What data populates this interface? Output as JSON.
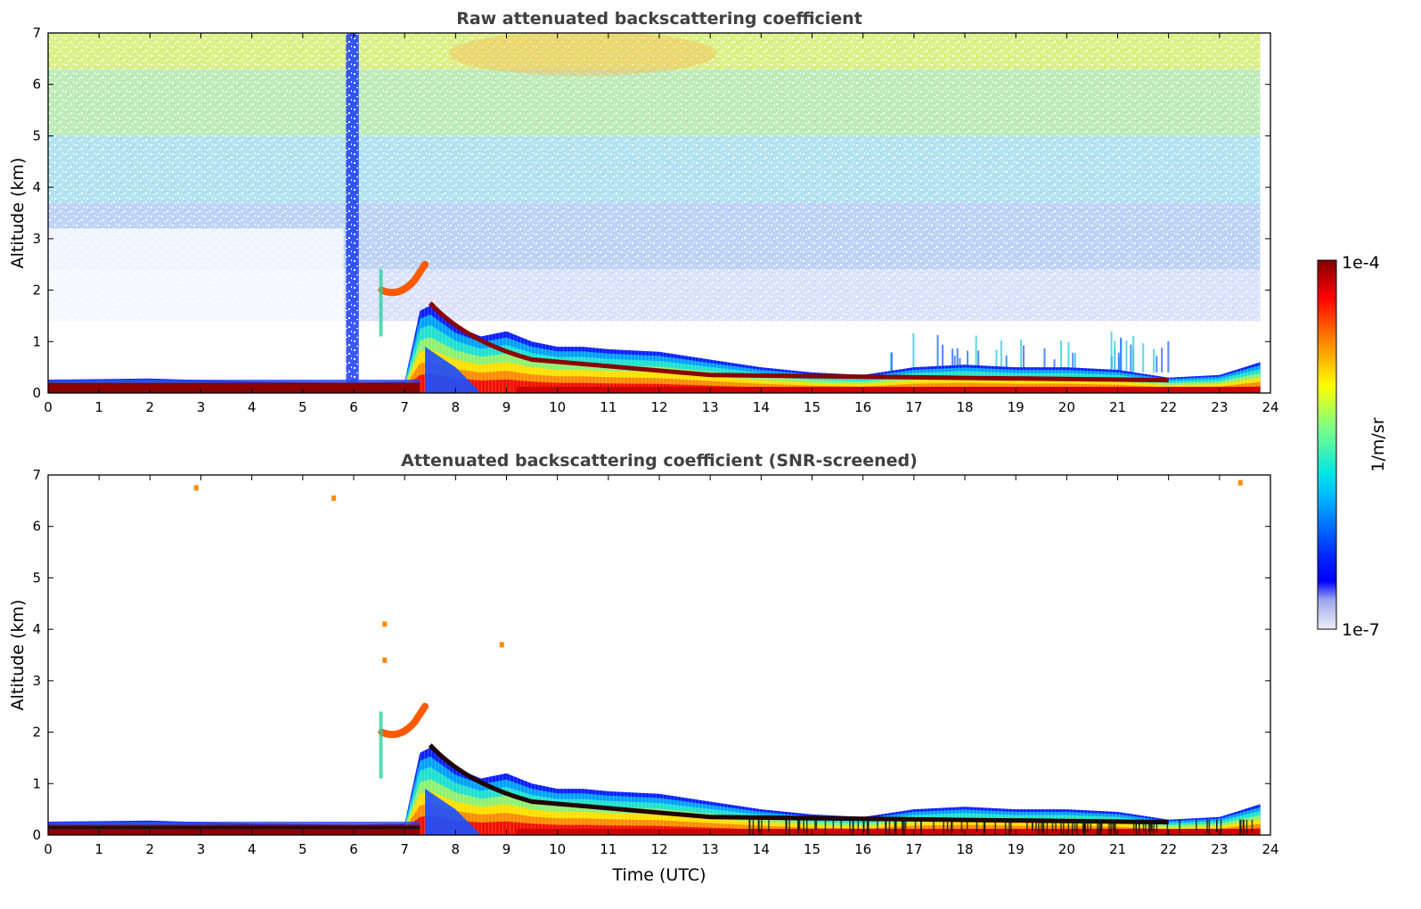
{
  "chart_data": [
    {
      "type": "heatmap",
      "title": "Raw attenuated backscattering coefficient",
      "xlabel": "",
      "ylabel": "Altitude (km)",
      "xlim": [
        0,
        24
      ],
      "ylim": [
        0,
        7
      ],
      "x_ticks": [
        "0",
        "1",
        "2",
        "3",
        "4",
        "5",
        "6",
        "7",
        "8",
        "9",
        "10",
        "11",
        "12",
        "13",
        "14",
        "15",
        "16",
        "17",
        "18",
        "19",
        "20",
        "21",
        "22",
        "23",
        "24"
      ],
      "y_ticks": [
        "0",
        "1",
        "2",
        "3",
        "4",
        "5",
        "6",
        "7"
      ],
      "data_extent_hours": [
        0,
        23.8
      ],
      "features": {
        "surface_layer_top_km": [
          [
            0,
            0.26
          ],
          [
            2,
            0.28
          ],
          [
            4,
            0.22
          ],
          [
            6,
            0.2
          ],
          [
            7,
            0.22
          ],
          [
            7.3,
            1.6
          ],
          [
            7.5,
            1.7
          ],
          [
            8,
            1.3
          ],
          [
            8.5,
            1.1
          ],
          [
            9,
            1.2
          ],
          [
            9.5,
            1.0
          ],
          [
            10,
            0.9
          ],
          [
            10.5,
            0.9
          ],
          [
            11,
            0.85
          ],
          [
            12,
            0.8
          ],
          [
            13,
            0.65
          ],
          [
            14,
            0.5
          ],
          [
            15,
            0.4
          ],
          [
            16,
            0.35
          ],
          [
            17,
            0.5
          ],
          [
            18,
            0.55
          ],
          [
            19,
            0.5
          ],
          [
            20,
            0.5
          ],
          [
            21,
            0.45
          ],
          [
            22,
            0.3
          ],
          [
            23,
            0.35
          ],
          [
            23.8,
            0.6
          ]
        ],
        "precipitation_column_hours": [
          5.85,
          6.1
        ],
        "elevated_layer": {
          "x": [
            6.5,
            7.4
          ],
          "y_km": [
            1.9,
            2.5
          ]
        }
      },
      "colorbar": {
        "label": "1/m/sr",
        "min_label": "1e-7",
        "max_label": "1e-4",
        "scale": "log"
      }
    },
    {
      "type": "heatmap",
      "title": "Attenuated backscattering coefficient (SNR-screened)",
      "xlabel": "Time (UTC)",
      "ylabel": "Altitude (km)",
      "xlim": [
        0,
        24
      ],
      "ylim": [
        0,
        7
      ],
      "x_ticks": [
        "0",
        "1",
        "2",
        "3",
        "4",
        "5",
        "6",
        "7",
        "8",
        "9",
        "10",
        "11",
        "12",
        "13",
        "14",
        "15",
        "16",
        "17",
        "18",
        "19",
        "20",
        "21",
        "22",
        "23",
        "24"
      ],
      "y_ticks": [
        "0",
        "1",
        "2",
        "3",
        "4",
        "5",
        "6",
        "7"
      ],
      "data_extent_hours": [
        0,
        23.8
      ],
      "features": {
        "surface_layer_top_km": [
          [
            0,
            0.26
          ],
          [
            2,
            0.28
          ],
          [
            4,
            0.22
          ],
          [
            6,
            0.2
          ],
          [
            7,
            0.22
          ],
          [
            7.3,
            1.6
          ],
          [
            7.5,
            1.7
          ],
          [
            8,
            1.3
          ],
          [
            8.5,
            1.1
          ],
          [
            9,
            1.2
          ],
          [
            9.5,
            1.0
          ],
          [
            10,
            0.9
          ],
          [
            10.5,
            0.9
          ],
          [
            11,
            0.85
          ],
          [
            12,
            0.8
          ],
          [
            13,
            0.65
          ],
          [
            14,
            0.5
          ],
          [
            15,
            0.4
          ],
          [
            16,
            0.35
          ],
          [
            17,
            0.5
          ],
          [
            18,
            0.55
          ],
          [
            19,
            0.5
          ],
          [
            20,
            0.5
          ],
          [
            21,
            0.45
          ],
          [
            22,
            0.3
          ],
          [
            23,
            0.35
          ],
          [
            23.8,
            0.6
          ]
        ],
        "elevated_layer": {
          "x": [
            6.5,
            7.4
          ],
          "y_km": [
            1.9,
            2.5
          ]
        },
        "screened_outliers": [
          [
            2.9,
            6.75
          ],
          [
            5.6,
            6.55
          ],
          [
            6.6,
            4.1
          ],
          [
            6.6,
            3.4
          ],
          [
            8.9,
            3.7
          ],
          [
            23.4,
            6.85
          ]
        ]
      },
      "colorbar": {
        "label": "1/m/sr",
        "min_label": "1e-7",
        "max_label": "1e-4",
        "scale": "log"
      }
    }
  ]
}
